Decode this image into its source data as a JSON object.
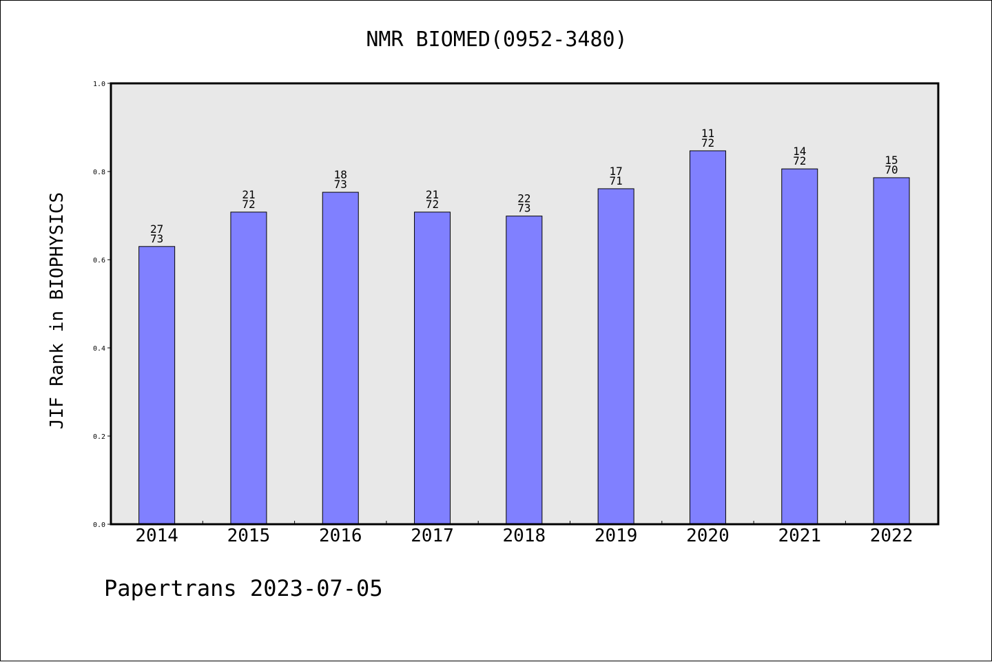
{
  "chart_data": {
    "type": "bar",
    "title": "NMR BIOMED(0952-3480)",
    "ylabel": "JIF Rank in BIOPHYSICS",
    "xlabel": "",
    "ylim": [
      0.0,
      1.0
    ],
    "yticks": [
      "0.0",
      "0.2",
      "0.4",
      "0.6",
      "0.8",
      "1.0"
    ],
    "categories": [
      "2014",
      "2015",
      "2016",
      "2017",
      "2018",
      "2019",
      "2020",
      "2021",
      "2022"
    ],
    "values": [
      0.63,
      0.708,
      0.753,
      0.708,
      0.699,
      0.761,
      0.847,
      0.806,
      0.786
    ],
    "rank": [
      "27",
      "21",
      "18",
      "21",
      "22",
      "17",
      "11",
      "14",
      "15"
    ],
    "total": [
      "73",
      "72",
      "73",
      "72",
      "73",
      "71",
      "72",
      "72",
      "70"
    ],
    "grid": false,
    "bar_color": "#8080ff",
    "plot_background": "#e8e8e8"
  },
  "footer": {
    "credit": "Papertrans 2023-07-05"
  }
}
